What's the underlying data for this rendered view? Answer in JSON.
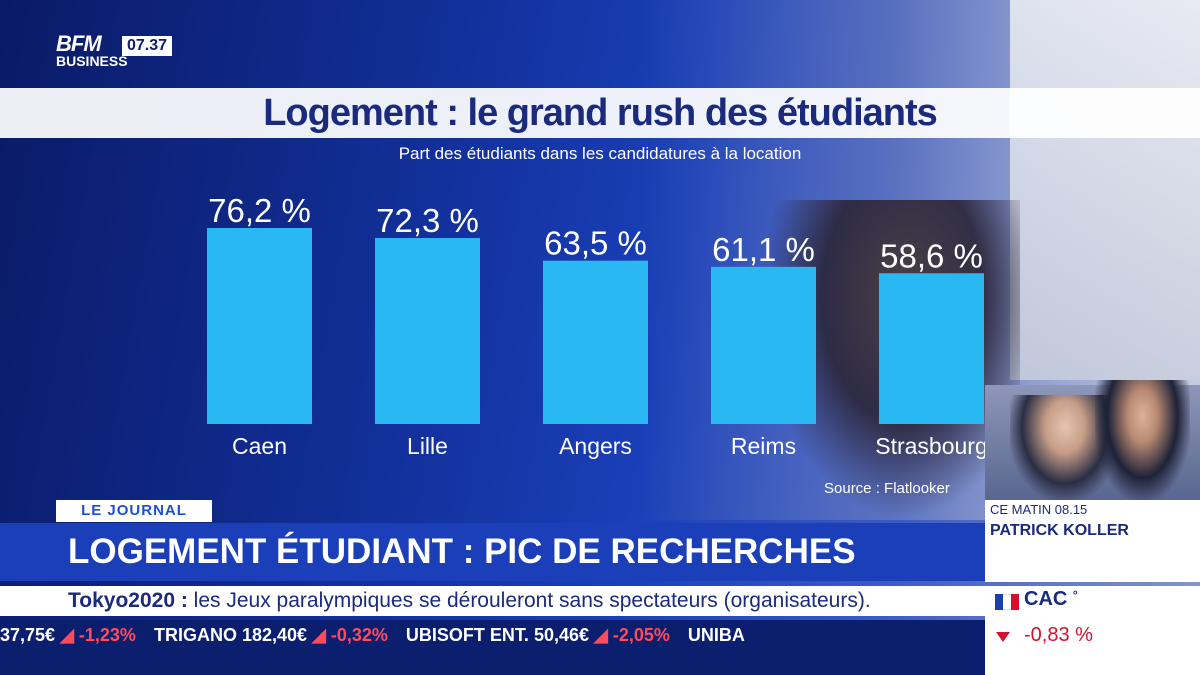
{
  "channel": {
    "logo_top": "BFM",
    "logo_bottom": "BUSINESS",
    "clock": "07.37"
  },
  "chart_data": {
    "type": "bar",
    "title": "Logement : le grand rush des étudiants",
    "subtitle": "Part des étudiants dans les candidatures à la location",
    "categories": [
      "Caen",
      "Lille",
      "Angers",
      "Reims",
      "Strasbourg"
    ],
    "values": [
      76.2,
      72.3,
      63.5,
      61.1,
      58.6
    ],
    "value_labels": [
      "76,2 %",
      "72,3 %",
      "63,5 %",
      "61,1 %",
      "58,6 %"
    ],
    "ylim": [
      0,
      76.2
    ],
    "grid": false,
    "bar_color": "#29b8f2",
    "source": "Source : Flatlooker"
  },
  "news": {
    "tag": "LE JOURNAL",
    "headline": "LOGEMENT ÉTUDIANT : PIC DE RECHERCHES",
    "ticker_label": "Tokyo2020 :",
    "ticker_text": " les Jeux paralympiques se dérouleront sans spectateurs (organisateurs)."
  },
  "show": {
    "time": "CE MATIN 08.15",
    "host": "PATRICK KOLLER"
  },
  "stocks": [
    {
      "name": "",
      "price": "37,75€",
      "change": "-1,23%"
    },
    {
      "name": "TRIGANO",
      "price": "182,40€",
      "change": "-0,32%"
    },
    {
      "name": "UBISOFT ENT.",
      "price": "50,46€",
      "change": "-2,05%"
    },
    {
      "name": "UNIBA",
      "price": "",
      "change": ""
    }
  ],
  "index": {
    "name": "CAC",
    "marker": "°",
    "change": "-0,83 %"
  },
  "colors": {
    "accent_blue": "#1a3fb8",
    "navy": "#0b1f6e",
    "negative": "#d4112c"
  }
}
